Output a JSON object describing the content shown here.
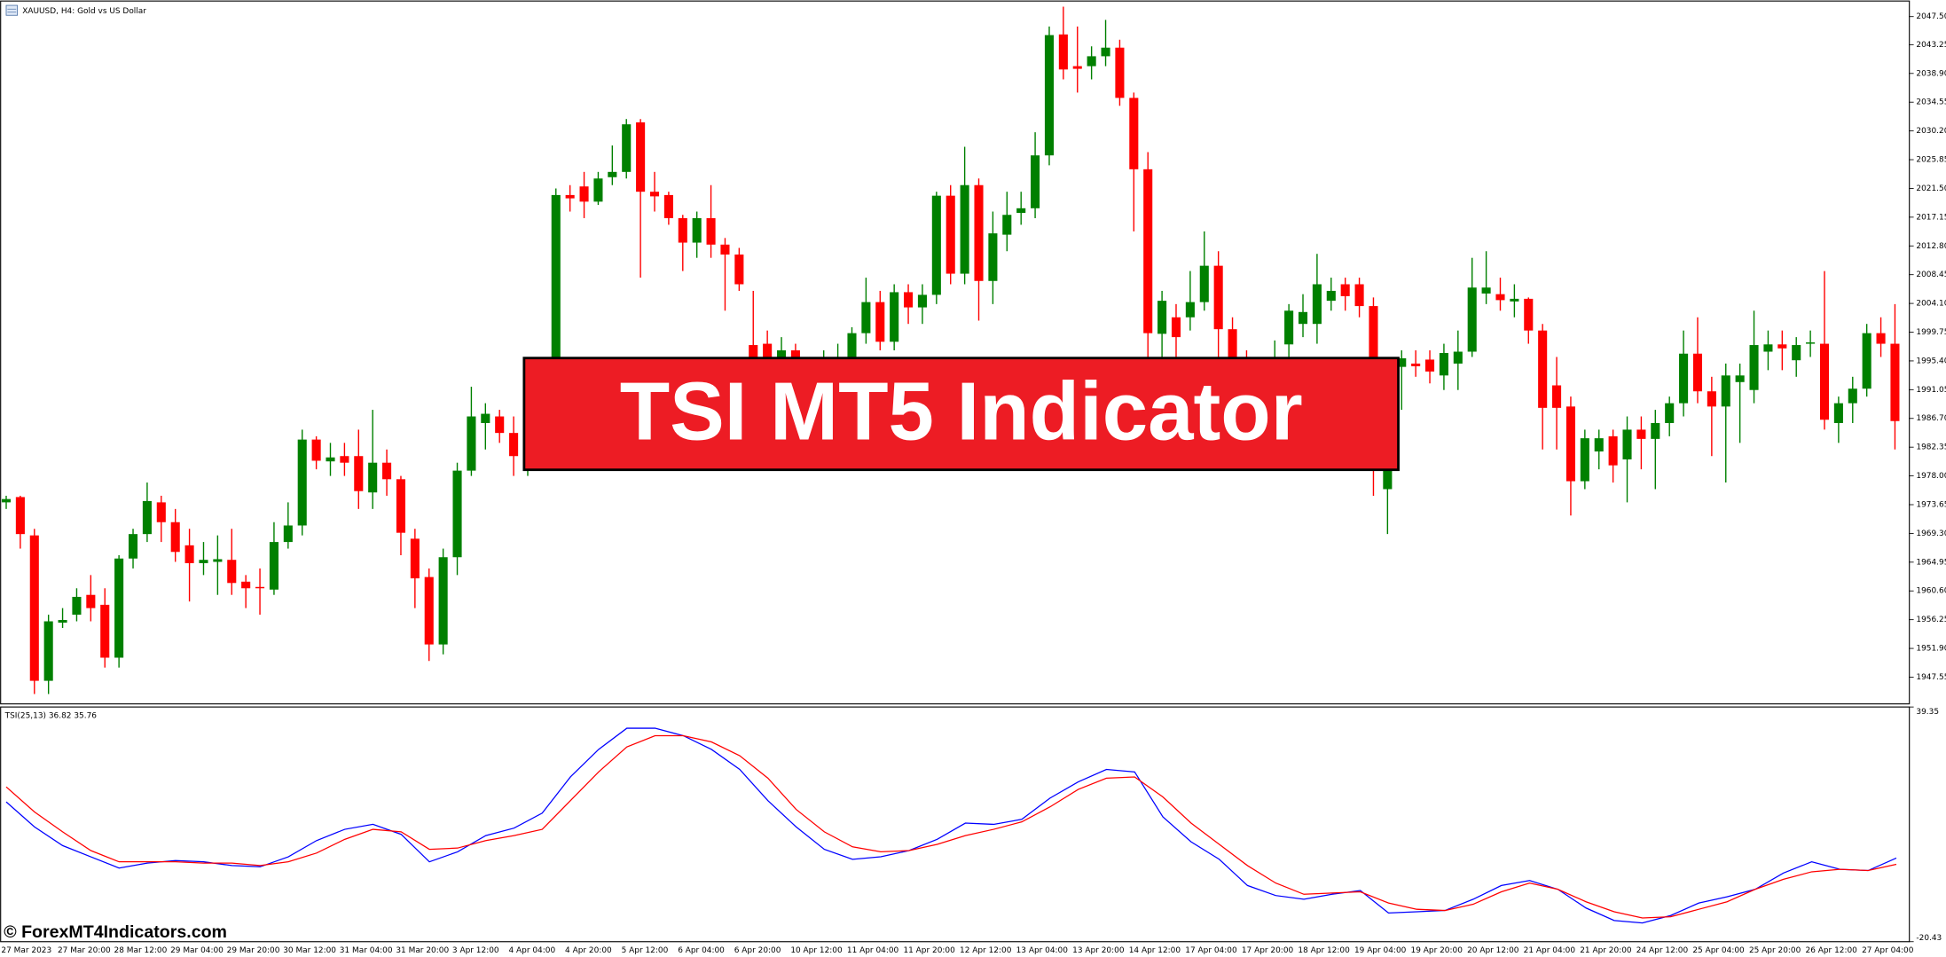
{
  "header": {
    "icon_title": "XAUUSD, H4:  Gold vs US Dollar"
  },
  "banner": "TSI MT5 Indicator",
  "watermark": "© ForexMT4Indicators.com",
  "chart_data": [
    {
      "type": "candlestick",
      "title": "XAUUSD, H4:  Gold vs US Dollar",
      "up_color": "#008000",
      "down_color": "#ff0000",
      "categories": [
        "27 Mar 2023",
        null,
        null,
        null,
        "27 Mar 20:00",
        null,
        null,
        null,
        "28 Mar 12:00",
        null,
        null,
        null,
        "29 Mar 04:00",
        null,
        null,
        null,
        "29 Mar 20:00",
        null,
        null,
        null,
        "30 Mar 12:00",
        null,
        null,
        null,
        "31 Mar 04:00",
        null,
        null,
        null,
        "31 Mar 20:00",
        null,
        null,
        null,
        "3 Apr 12:00",
        null,
        null,
        null,
        "4 Apr 04:00",
        null,
        null,
        null,
        "4 Apr 20:00",
        null,
        null,
        null,
        "5 Apr 12:00",
        null,
        null,
        null,
        "6 Apr 04:00",
        null,
        null,
        null,
        "6 Apr 20:00",
        null,
        null,
        null,
        "10 Apr 12:00",
        null,
        null,
        null,
        "11 Apr 04:00",
        null,
        null,
        null,
        "11 Apr 20:00",
        null,
        null,
        null,
        "12 Apr 12:00",
        null,
        null,
        null,
        "13 Apr 04:00",
        null,
        null,
        null,
        "13 Apr 20:00",
        null,
        null,
        null,
        "14 Apr 12:00",
        null,
        null,
        null,
        "17 Apr 04:00",
        null,
        null,
        null,
        "17 Apr 20:00",
        null,
        null,
        null,
        "18 Apr 12:00",
        null,
        null,
        null,
        "19 Apr 04:00",
        null,
        null,
        null,
        "19 Apr 20:00",
        null,
        null,
        null,
        "20 Apr 12:00",
        null,
        null,
        null,
        "21 Apr 04:00",
        null,
        null,
        null,
        "21 Apr 20:00",
        null,
        null,
        null,
        "24 Apr 12:00",
        null,
        null,
        null,
        "25 Apr 04:00",
        null,
        null,
        null,
        "25 Apr 20:00",
        null,
        null,
        null,
        "26 Apr 12:00",
        null,
        null,
        null,
        "27 Apr 04:00",
        null,
        null
      ],
      "open": [
        1974,
        1974.8,
        1969,
        1947,
        1955.8,
        1957,
        1960,
        1958.5,
        1950.5,
        1965.5,
        1969.2,
        1974,
        1971,
        1967.5,
        1964.8,
        1965,
        1965.3,
        1962,
        1961.2,
        1960.8,
        1968,
        1970.5,
        1983.5,
        1980.2,
        1981,
        1981,
        1975.5,
        1980,
        1977.5,
        1968.5,
        1962.7,
        1952.5,
        1965.7,
        1978.8,
        1986,
        1987,
        1984.5,
        1981,
        1983,
        1992,
        2020.5,
        2021.8,
        2019.5,
        2023.2,
        2024,
        2031.5,
        2021,
        2020.5,
        2017,
        2013.3,
        2017,
        2013,
        2011.5,
        1997.8,
        1998,
        1994,
        1997,
        1993,
        1992,
        1994,
        1996,
        1999.6,
        2004.3,
        1998.3,
        2005.8,
        2003.5,
        2005.4,
        2020.4,
        2008.6,
        2022,
        2007.5,
        2014.5,
        2017.8,
        2018.5,
        2026.5,
        2044.8,
        2040,
        2040,
        2041.5,
        2042.8,
        2035.2,
        2024.4,
        1999.5,
        2002,
        2002,
        2004.3,
        2009.8,
        2000.2,
        1996,
        1993,
        1993,
        1997.9,
        2001,
        2001,
        2004.5,
        2007,
        2007,
        2003.7,
        1976,
        1994.5,
        1995,
        1995.6,
        1993.2,
        1995,
        1996.8,
        2005.6,
        2005.5,
        2004.4,
        2004.8,
        2000,
        1991.7,
        1988.5,
        1977.2,
        1981.7,
        1984,
        1980.5,
        1985,
        1983.6,
        1986,
        1989,
        1996.5,
        1990.8,
        1988.5,
        1992.2,
        1991,
        1996.8,
        1997.9,
        1995.5,
        1998,
        1998,
        1986,
        1989,
        1991.2,
        1999.6,
        1998
      ],
      "high": [
        1975,
        1975,
        1970,
        1957,
        1958,
        1961,
        1963,
        1961,
        1966,
        1970,
        1977,
        1975,
        1973,
        1970,
        1968,
        1969,
        1970,
        1963,
        1964,
        1971,
        1974,
        1985,
        1984,
        1983,
        1983,
        1985,
        1988,
        1982,
        1978,
        1970,
        1964,
        1967,
        1980,
        1991.5,
        1989,
        1988,
        1987,
        1985,
        1994,
        2021.5,
        2022,
        2024,
        2024,
        2028,
        2032,
        2032,
        2024,
        2021,
        2017.5,
        2018,
        2022,
        2014,
        2012.5,
        2006,
        2000,
        1999,
        1998,
        1996,
        1997,
        1998,
        2000.5,
        2008,
        2006,
        2007,
        2007,
        2007,
        2021,
        2022,
        2027.8,
        2023,
        2018,
        2021,
        2021,
        2030,
        2046,
        2049,
        2046,
        2043,
        2047,
        2044,
        2036,
        2027,
        2006,
        2004,
        2009,
        2015,
        2012,
        2002,
        1997,
        1995,
        1998.5,
        2004,
        2005.5,
        2011.6,
        2008,
        2008,
        2008,
        2005,
        1995,
        1997,
        1997,
        1997,
        1998,
        2000,
        2011,
        2012,
        2008,
        2007,
        2005,
        2001,
        1996,
        1990,
        1985,
        1985,
        1985,
        1987,
        1987,
        1988,
        1990,
        2000,
        2002,
        1993,
        1995,
        1995,
        2003,
        2000,
        2000,
        1999,
        2000,
        2009,
        1990,
        1993,
        2001,
        2002,
        2004
      ],
      "low": [
        1973,
        1967,
        1945,
        1945,
        1955,
        1956,
        1956,
        1949,
        1949,
        1964,
        1968,
        1968,
        1965,
        1959,
        1963,
        1960,
        1960,
        1958,
        1957,
        1960,
        1967,
        1969,
        1979,
        1978,
        1978,
        1973,
        1973,
        1975,
        1966,
        1958,
        1950,
        1951,
        1963,
        1978,
        1982,
        1983,
        1978,
        1978,
        1981,
        1990,
        2018,
        2017,
        2019,
        2022,
        2023,
        2008,
        2018,
        2016,
        2009,
        2011,
        2011,
        2003,
        2006,
        1990,
        1992,
        1992,
        1990,
        1988,
        1990,
        1992,
        1994,
        1998,
        1997,
        1997,
        2001,
        2001,
        2004,
        2007,
        2007,
        2001.5,
        2004,
        2012,
        2016,
        2017,
        2025,
        2038,
        2036,
        2038,
        2040,
        2034,
        2015,
        1996,
        1996,
        1996,
        2000,
        2003,
        1996,
        1993,
        1990,
        1989,
        1991,
        1996,
        1999,
        1998,
        2003,
        2003,
        2002,
        1975,
        1969.2,
        1988,
        1993,
        1992,
        1991,
        1991,
        1996,
        2004,
        2003,
        2002,
        1998,
        1982,
        1982,
        1972,
        1976,
        1979,
        1977,
        1974,
        1979,
        1976,
        1984,
        1987,
        1989,
        1981,
        1977,
        1983,
        1989,
        1994,
        1994,
        1993,
        1996,
        1985,
        1983,
        1986,
        1990,
        1996,
        1982
      ],
      "close": [
        1974.5,
        1969.2,
        1947,
        1956,
        1956.2,
        1959.7,
        1958,
        1950.5,
        1965.5,
        1969.2,
        1974.2,
        1971,
        1966.5,
        1964.8,
        1965.3,
        1965.4,
        1961.8,
        1961,
        1961,
        1968,
        1970.5,
        1983.5,
        1980.3,
        1980.8,
        1980,
        1975.7,
        1980,
        1977.5,
        1969.4,
        1962.5,
        1952.5,
        1965.7,
        1978.8,
        1987,
        1987.4,
        1984.5,
        1981,
        1983,
        1992,
        2020.5,
        2020,
        2019.5,
        2023,
        2024,
        2031.2,
        2021,
        2020.3,
        2017,
        2013.3,
        2017,
        2013,
        2011.5,
        2007,
        1995.8,
        1996,
        1997,
        1993,
        1992,
        1994,
        1995,
        1999.6,
        2004.3,
        1998.3,
        2005.8,
        2003.5,
        2005.4,
        2020.4,
        2008.6,
        2022,
        2007.5,
        2014.7,
        2017.5,
        2018.5,
        2026.5,
        2044.7,
        2039.5,
        2039.6,
        2041.5,
        2042.8,
        2035.2,
        2024.4,
        1999.6,
        2004.5,
        1999,
        2004.3,
        2009.8,
        2000.2,
        1995.5,
        1993,
        1992,
        1995.7,
        2003,
        2002.8,
        2007,
        2006,
        2005.2,
        2003.7,
        1991.7,
        1992,
        1995.8,
        1994.6,
        1993.8,
        1996.6,
        1996.8,
        2006.5,
        2006.5,
        2004.6,
        2004.8,
        2000,
        1988.3,
        1988.3,
        1977.2,
        1983.7,
        1983.7,
        1979.6,
        1985,
        1983.6,
        1986,
        1989,
        1996.5,
        1990.8,
        1988.5,
        1993.2,
        1993.2,
        1997.8,
        1997.9,
        1997.3,
        1997.8,
        1998.2,
        1986.5,
        1989,
        1991.2,
        1999.6,
        1998,
        1986.3
      ],
      "ylim": [
        1943.6,
        2049.95
      ],
      "yticks": [
        {
          "value": 2047.5,
          "label": "2047.50"
        },
        2043.25,
        {
          "value": 2038.9,
          "label": "2038.90"
        },
        2034.55,
        {
          "value": 2030.2,
          "label": "2030.20"
        },
        2025.85,
        {
          "value": 2021.5,
          "label": "2021.50"
        },
        2017.15,
        {
          "value": 2012.8,
          "label": "2012.80"
        },
        2008.45,
        {
          "value": 2004.1,
          "label": "2004.10"
        },
        1999.75,
        {
          "value": 1995.4,
          "label": "1995.40"
        },
        1991.05,
        {
          "value": 1986.7,
          "label": "1986.70"
        },
        1982.35,
        {
          "value": 1978,
          "label": "1978.00"
        },
        1973.65,
        {
          "value": 1969.3,
          "label": "1969.30"
        },
        1964.95,
        {
          "value": 1960.6,
          "label": "1960.60"
        },
        1956.25,
        {
          "value": 1951.9,
          "label": "1951.90"
        },
        1947.55
      ]
    },
    {
      "type": "line",
      "title": "TSI(25,13) 36.82 35.76",
      "series": [
        {
          "color": "#0000ff",
          "values": [
            15.18,
            8.82,
            4.05,
            1.19,
            -1.67,
            -0.4,
            0.24,
            -0.08,
            -1.04,
            -1.35,
            1.19,
            5.32,
            8.19,
            9.46,
            6.91,
            -0.08,
            2.46,
            6.6,
            8.5,
            12.32,
            21.54,
            28.54,
            33.94,
            33.94,
            32.04,
            28.54,
            23.45,
            15.5,
            8.82,
            3.1,
            0.55,
            1.19,
            2.78,
            5.64,
            9.78,
            9.46,
            10.73,
            16.14,
            20.27,
            23.45,
            22.81,
            11.37,
            5.01,
            0.55,
            -6.12,
            -8.67,
            -9.62,
            -8.35,
            -7.4,
            -13.12,
            -12.8,
            -12.48,
            -9.62,
            -6.12,
            -4.85,
            -7.08,
            -11.85,
            -15.03,
            -15.66,
            -13.76,
            -10.58,
            -8.99,
            -7.08,
            -2.94,
            -0.08,
            -1.99,
            -2.31,
            0.87
          ]
        },
        {
          "color": "#ff0000",
          "values": [
            19.0,
            12.64,
            7.55,
            2.78,
            -0.08,
            -0.08,
            -0.08,
            -0.4,
            -0.4,
            -1.04,
            -0.08,
            2.14,
            5.64,
            8.19,
            7.55,
            3.1,
            3.42,
            5.32,
            6.6,
            8.19,
            15.5,
            22.81,
            29.17,
            32.04,
            32.04,
            30.45,
            26.95,
            21.22,
            13.27,
            7.55,
            3.73,
            2.46,
            2.78,
            4.37,
            6.6,
            8.19,
            10.09,
            13.91,
            18.36,
            21.22,
            21.54,
            16.45,
            9.78,
            4.37,
            -1.04,
            -5.49,
            -8.35,
            -8.03,
            -7.72,
            -10.58,
            -12.17,
            -12.48,
            -10.89,
            -7.72,
            -5.49,
            -7.08,
            -10.26,
            -12.8,
            -14.39,
            -14.07,
            -12.17,
            -10.26,
            -7.08,
            -4.53,
            -2.63,
            -1.99,
            -2.31,
            -0.72
          ]
        }
      ],
      "ylim": [
        -20.43,
        39.35
      ],
      "yticks": [
        39.35,
        -20.43
      ]
    }
  ]
}
